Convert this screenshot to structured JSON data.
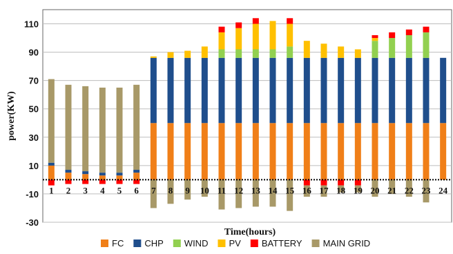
{
  "chart_data": {
    "type": "bar",
    "stacked": true,
    "title": "",
    "xlabel": "Time(hours)",
    "ylabel": "power(KW)",
    "ylim": [
      -30,
      120
    ],
    "yticks": [
      -30,
      -10,
      10,
      30,
      50,
      70,
      90,
      110
    ],
    "grid": true,
    "legend_position": "bottom",
    "categories": [
      "1",
      "2",
      "3",
      "4",
      "5",
      "6",
      "7",
      "8",
      "9",
      "10",
      "11",
      "12",
      "13",
      "14",
      "15",
      "16",
      "17",
      "18",
      "19",
      "20",
      "21",
      "22",
      "23",
      "24"
    ],
    "series": [
      {
        "name": "FC",
        "color": "#F07F18",
        "values": [
          10,
          5,
          4,
          3,
          3,
          5,
          40,
          40,
          40,
          40,
          40,
          40,
          40,
          40,
          40,
          40,
          40,
          40,
          40,
          40,
          40,
          40,
          40,
          40
        ]
      },
      {
        "name": "CHP",
        "color": "#1F4E8C",
        "values": [
          2,
          2,
          2,
          2,
          2,
          2,
          46,
          46,
          46,
          46,
          46,
          46,
          46,
          46,
          46,
          46,
          46,
          46,
          46,
          46,
          46,
          46,
          46,
          46
        ]
      },
      {
        "name": "WIND",
        "color": "#92D050",
        "values": [
          0,
          0,
          0,
          0,
          0,
          0,
          0,
          0,
          0,
          0,
          6,
          6,
          6,
          6,
          8,
          0,
          0,
          0,
          0,
          12,
          14,
          16,
          18,
          0
        ]
      },
      {
        "name": "PV",
        "color": "#FFC000",
        "values": [
          0,
          0,
          0,
          0,
          0,
          0,
          1,
          4,
          5,
          8,
          12,
          15,
          18,
          20,
          16,
          12,
          10,
          8,
          6,
          2,
          0,
          0,
          0,
          0
        ]
      },
      {
        "name": "BATTERY",
        "color": "#FF0000",
        "values": [
          -4,
          -3,
          -3,
          -3,
          -3,
          -3,
          0,
          0,
          0,
          0,
          4,
          4,
          4,
          0,
          4,
          -4,
          -4,
          -4,
          -4,
          2,
          4,
          4,
          4,
          0
        ]
      },
      {
        "name": "MAIN GRID",
        "color": "#A89968",
        "values": [
          59,
          60,
          60,
          60,
          60,
          60,
          -20,
          -17,
          -14,
          -12,
          -21,
          -20,
          -19,
          -19,
          -22,
          -8,
          -8,
          -5,
          -5,
          -12,
          -10,
          -12,
          -16,
          0
        ]
      }
    ]
  }
}
